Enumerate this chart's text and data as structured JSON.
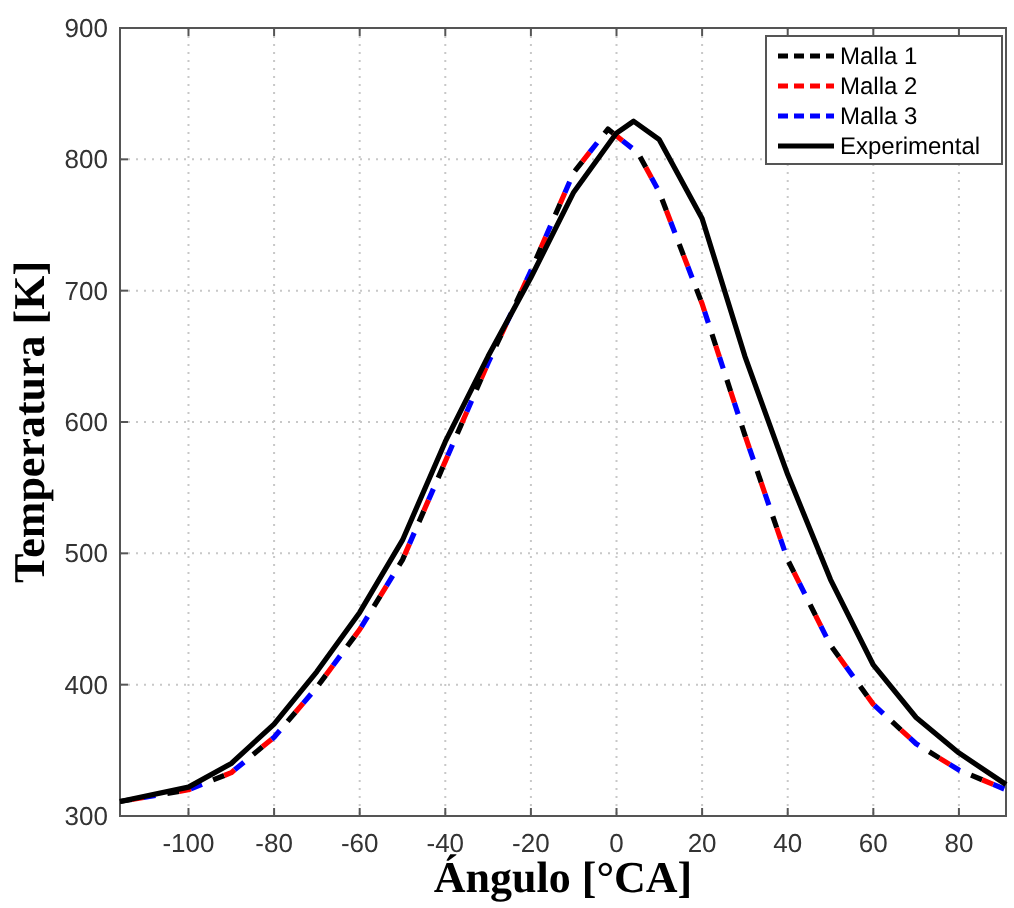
{
  "chart_data": {
    "type": "line",
    "xlabel": "Ángulo [°CA]",
    "ylabel": "Temperatura [K]",
    "xlim": [
      -116,
      91
    ],
    "ylim": [
      300,
      900
    ],
    "xticks": [
      -100,
      -80,
      -60,
      -40,
      -20,
      0,
      20,
      40,
      60,
      80
    ],
    "yticks": [
      300,
      400,
      500,
      600,
      700,
      800,
      900
    ],
    "grid": true,
    "legend": "top right",
    "series": [
      {
        "name": "Malla 1",
        "color": "#000000",
        "line_style": "dashed",
        "x": [
          -116,
          -100,
          -90,
          -80,
          -70,
          -60,
          -50,
          -40,
          -30,
          -20,
          -10,
          -2,
          5,
          10,
          20,
          30,
          40,
          50,
          60,
          70,
          80,
          91
        ],
        "values": [
          311,
          320,
          333,
          360,
          398,
          442,
          495,
          570,
          645,
          715,
          790,
          823,
          805,
          775,
          690,
          590,
          495,
          430,
          385,
          355,
          335,
          320
        ]
      },
      {
        "name": "Malla 2",
        "color": "#ff0000",
        "line_style": "dashed",
        "x": [
          -116,
          -100,
          -90,
          -80,
          -70,
          -60,
          -50,
          -40,
          -30,
          -20,
          -10,
          -2,
          5,
          10,
          20,
          30,
          40,
          50,
          60,
          70,
          80,
          91
        ],
        "values": [
          311,
          320,
          333,
          360,
          398,
          442,
          495,
          570,
          645,
          715,
          790,
          823,
          805,
          775,
          690,
          590,
          495,
          430,
          385,
          355,
          335,
          320
        ]
      },
      {
        "name": "Malla 3",
        "color": "#0000ff",
        "line_style": "dashed",
        "x": [
          -116,
          -100,
          -90,
          -80,
          -70,
          -60,
          -50,
          -40,
          -30,
          -20,
          -10,
          -2,
          5,
          10,
          20,
          30,
          40,
          50,
          60,
          70,
          80,
          91
        ],
        "values": [
          311,
          320,
          333,
          360,
          398,
          442,
          495,
          570,
          645,
          715,
          790,
          823,
          805,
          775,
          690,
          590,
          495,
          430,
          385,
          355,
          335,
          320
        ]
      },
      {
        "name": "Experimental",
        "color": "#000000",
        "line_style": "solid",
        "x": [
          -116,
          -100,
          -90,
          -80,
          -70,
          -60,
          -50,
          -40,
          -30,
          -20,
          -10,
          0,
          4,
          10,
          20,
          30,
          40,
          50,
          60,
          70,
          80,
          91
        ],
        "values": [
          311,
          322,
          340,
          370,
          410,
          455,
          510,
          585,
          650,
          710,
          775,
          820,
          829,
          815,
          755,
          650,
          560,
          480,
          415,
          375,
          348,
          324
        ]
      }
    ]
  }
}
